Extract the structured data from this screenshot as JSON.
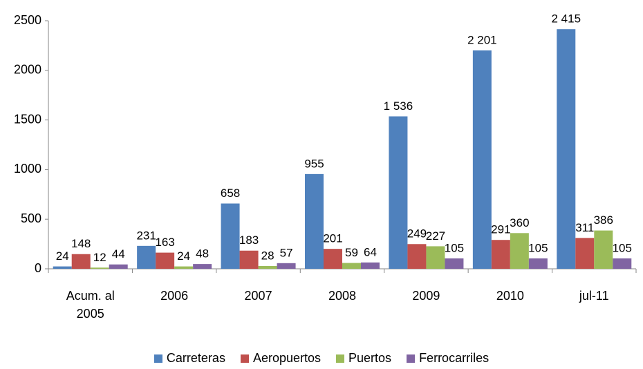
{
  "chart_data": {
    "type": "bar",
    "categories": [
      "Acum. al 2005",
      "2006",
      "2007",
      "2008",
      "2009",
      "2010",
      "jul-11"
    ],
    "series": [
      {
        "name": "Carreteras",
        "color": "#4f81bd",
        "values": [
          24,
          231,
          658,
          955,
          1536,
          2201,
          2415
        ],
        "value_labels": [
          "24",
          "231",
          "658",
          "955",
          "1 536",
          "2 201",
          "2 415"
        ]
      },
      {
        "name": "Aeropuertos",
        "color": "#c0504d",
        "values": [
          148,
          163,
          183,
          201,
          249,
          291,
          311
        ]
      },
      {
        "name": "Puertos",
        "color": "#9bbb59",
        "values": [
          12,
          24,
          28,
          59,
          227,
          360,
          386
        ]
      },
      {
        "name": "Ferrocarriles",
        "color": "#8064a2",
        "values": [
          44,
          48,
          57,
          64,
          105,
          105,
          105
        ]
      }
    ],
    "ylim": [
      0,
      2500
    ],
    "yticks": [
      0,
      500,
      1000,
      1500,
      2000,
      2500
    ],
    "grid": false,
    "legend": "bottom"
  }
}
